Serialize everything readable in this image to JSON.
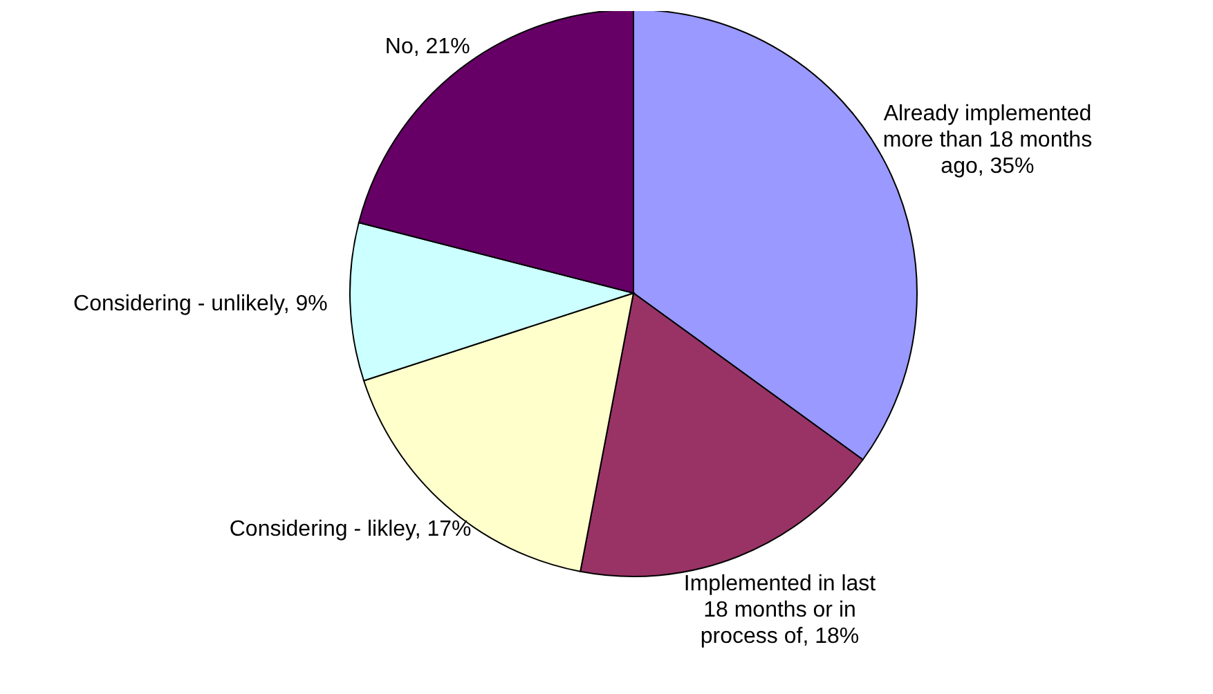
{
  "chart_data": {
    "type": "pie",
    "categories": [
      "Already implemented more than 18 months ago",
      "Implemented in last 18 months or in process of",
      "Considering - likley",
      "Considering - unlikely",
      "No"
    ],
    "values": [
      35,
      18,
      17,
      9,
      21
    ],
    "value_labels": [
      "35%",
      "18%",
      "17%",
      "9%",
      "21%"
    ],
    "colors": [
      "#9999ff",
      "#993366",
      "#ffffcc",
      "#ccffff",
      "#660066"
    ]
  }
}
